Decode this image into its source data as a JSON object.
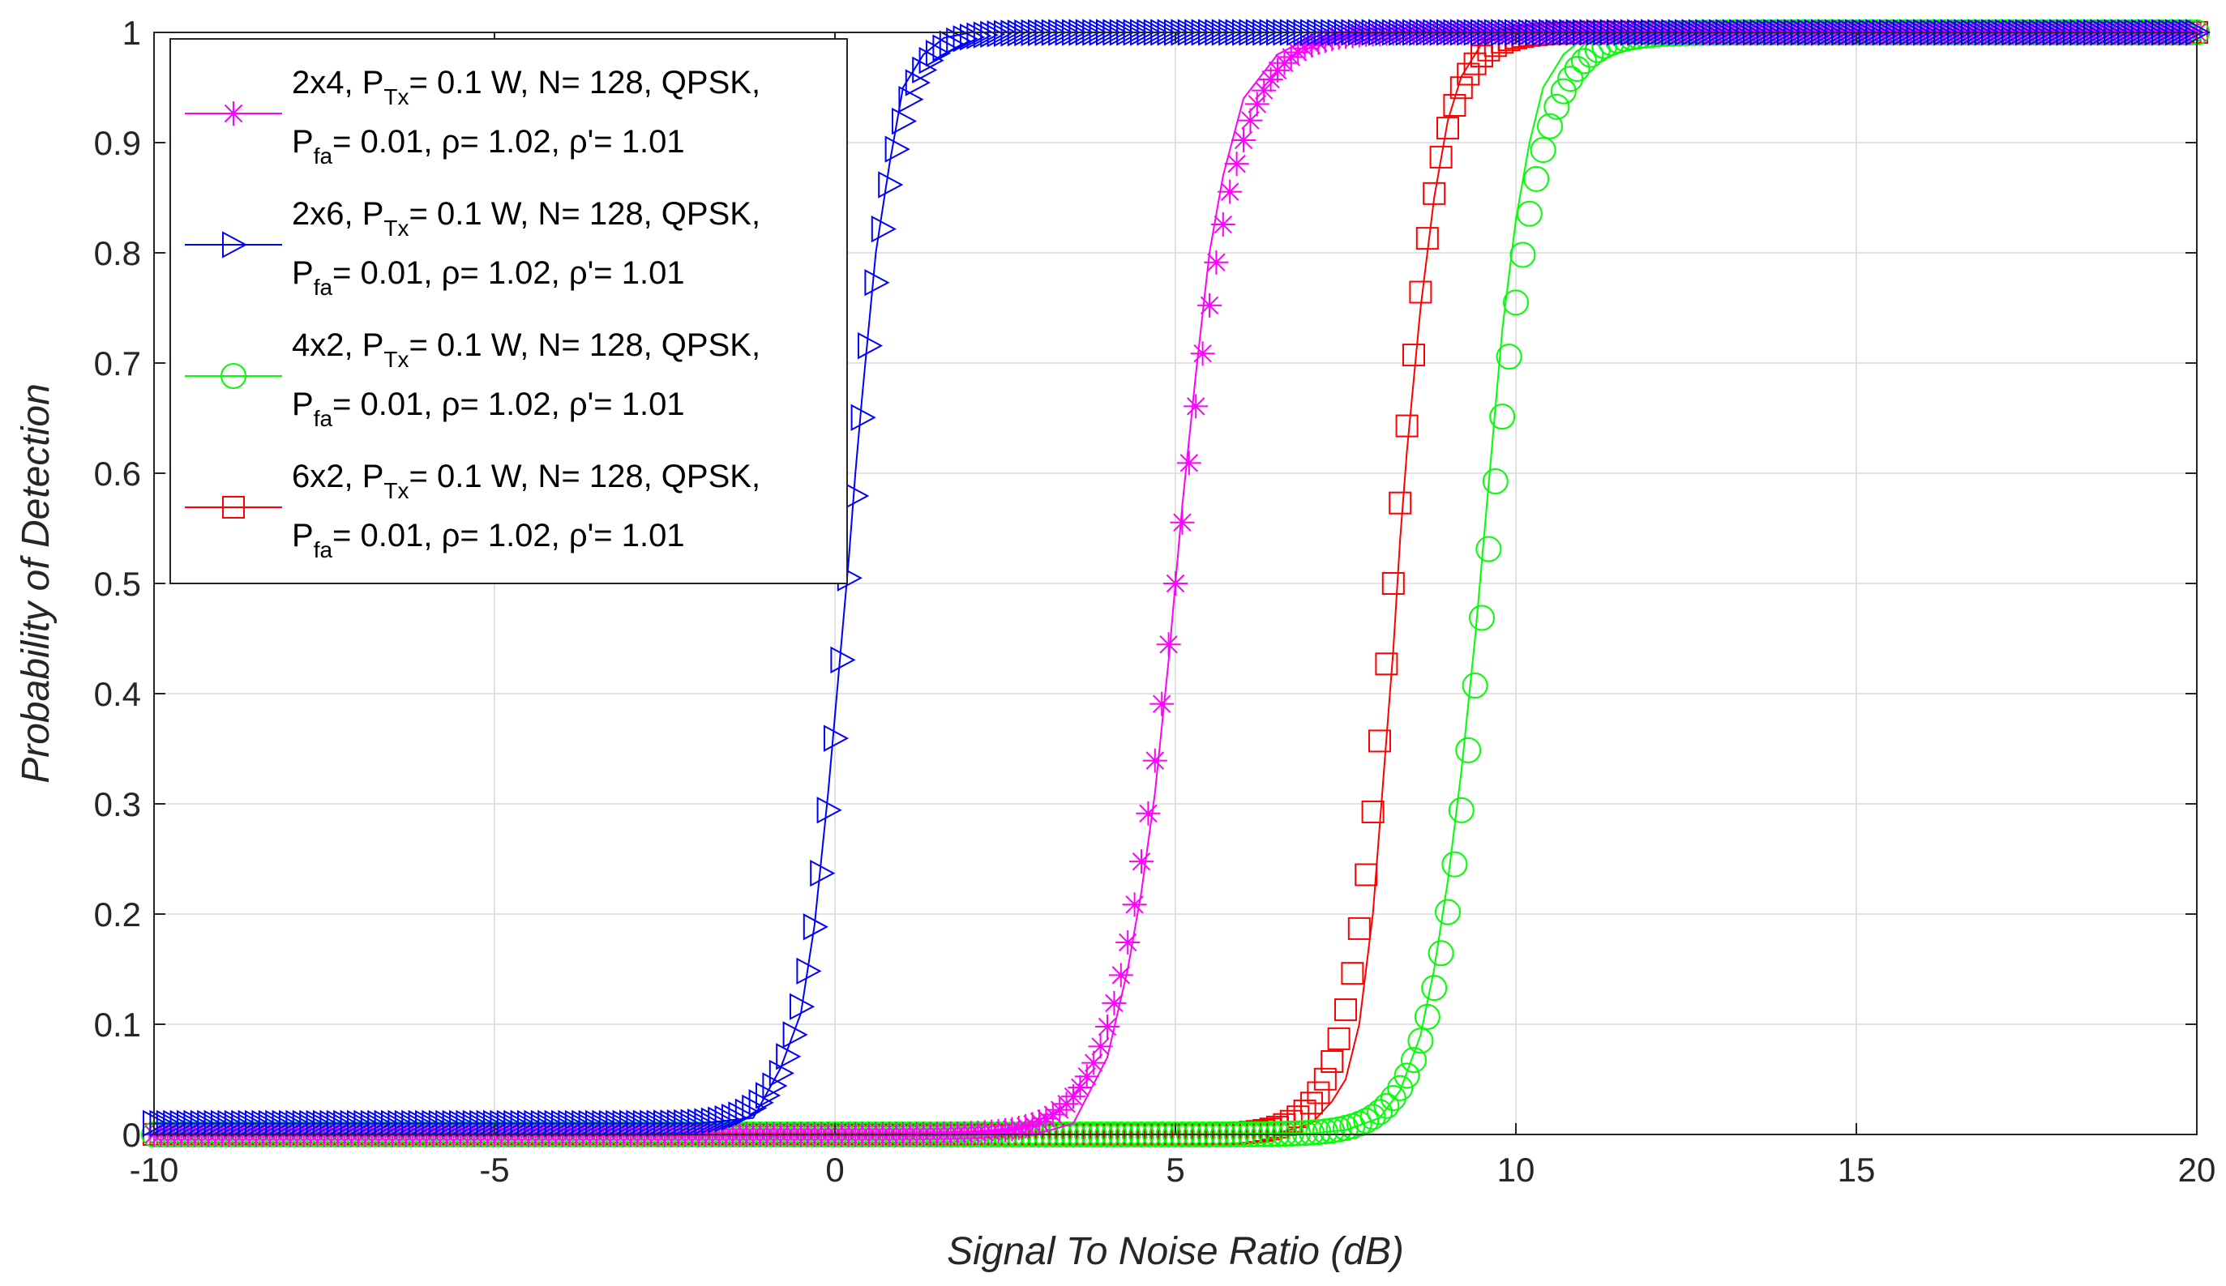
{
  "chart_data": {
    "type": "line",
    "title": "",
    "xlabel": "Signal To Noise Ratio (dB)",
    "ylabel": "Probability of Detection",
    "xlim": [
      -10,
      20
    ],
    "ylim": [
      0,
      1
    ],
    "xticks": [
      -10,
      -5,
      0,
      5,
      10,
      15,
      20
    ],
    "xtick_labels": [
      "-10",
      "-5",
      "0",
      "5",
      "10",
      "15",
      "20"
    ],
    "yticks": [
      0,
      0.1,
      0.2,
      0.3,
      0.4,
      0.5,
      0.6,
      0.7,
      0.8,
      0.9,
      1
    ],
    "ytick_labels": [
      "0",
      "0.1",
      "0.2",
      "0.3",
      "0.4",
      "0.5",
      "0.6",
      "0.7",
      "0.8",
      "0.9",
      "1"
    ],
    "grid": true,
    "legend_position": "top-left",
    "series": [
      {
        "name": "2x4, P_Tx= 0.1 W, N= 128, QPSK, P_fa= 0.01, ρ= 1.02, ρ'= 1.01",
        "legend_line1": {
          "pre": "2x4, P",
          "sub": "Tx",
          "post": "= 0.1 W, N= 128, QPSK,"
        },
        "legend_line2": {
          "pre": "P",
          "sub": "fa",
          "post": "= 0.01, ρ= 1.02, ρ'= 1.01"
        },
        "color": "#ff00ff",
        "marker": "asterisk",
        "center": 5.0,
        "width": 0.45,
        "floor": 0.0,
        "x": [
          -10,
          -9,
          -8,
          -7,
          -6,
          -5,
          -4,
          -3,
          -2,
          -1,
          0,
          1,
          2,
          3,
          3.5,
          4.0,
          4.3,
          4.5,
          4.7,
          4.8,
          4.9,
          5.0,
          5.1,
          5.2,
          5.3,
          5.5,
          5.7,
          6.0,
          6.5,
          7,
          8,
          10,
          12,
          15,
          20
        ],
        "y": [
          0,
          0,
          0,
          0,
          0,
          0,
          0,
          0,
          0,
          0,
          0,
          0,
          0,
          0.001,
          0.01,
          0.07,
          0.15,
          0.22,
          0.31,
          0.37,
          0.43,
          0.5,
          0.57,
          0.63,
          0.69,
          0.8,
          0.87,
          0.94,
          0.98,
          0.996,
          1,
          1,
          1,
          1,
          1
        ]
      },
      {
        "name": "2x6, P_Tx= 0.1 W, N= 128, QPSK, P_fa= 0.01, ρ= 1.02, ρ'= 1.01",
        "legend_line1": {
          "pre": "2x6, P",
          "sub": "Tx",
          "post": "= 0.1 W, N= 128, QPSK,"
        },
        "legend_line2": {
          "pre": "P",
          "sub": "fa",
          "post": "= 0.01, ρ= 1.02, ρ'= 1.01"
        },
        "color": "#0000ff",
        "marker": "triangle-right",
        "center": 0.2,
        "width": 0.33,
        "floor": 0.01,
        "x": [
          -10,
          -9,
          -8,
          -7,
          -6,
          -5,
          -4,
          -3,
          -2,
          -1.2,
          -0.8,
          -0.5,
          -0.3,
          -0.1,
          0.0,
          0.1,
          0.2,
          0.3,
          0.4,
          0.6,
          0.8,
          1.0,
          1.3,
          1.6,
          2.0,
          3,
          5,
          10,
          15,
          20
        ],
        "y": [
          0.01,
          0.01,
          0.01,
          0.01,
          0.01,
          0.01,
          0.01,
          0.01,
          0.01,
          0.015,
          0.06,
          0.11,
          0.19,
          0.31,
          0.38,
          0.45,
          0.52,
          0.6,
          0.67,
          0.8,
          0.88,
          0.95,
          0.98,
          0.995,
          1,
          1,
          1,
          1,
          1,
          1
        ]
      },
      {
        "name": "4x2, P_Tx= 0.1 W, N= 128, QPSK, P_fa= 0.01, ρ= 1.02, ρ'= 1.01",
        "legend_line1": {
          "pre": "4x2, P",
          "sub": "Tx",
          "post": "= 0.1 W, N= 128, QPSK,"
        },
        "legend_line2": {
          "pre": "P",
          "sub": "fa",
          "post": "= 0.01, ρ= 1.02, ρ'= 1.01"
        },
        "color": "#00ff00",
        "marker": "circle",
        "center": 9.55,
        "width": 0.4,
        "floor": 0.0,
        "x": [
          -10,
          -5,
          0,
          5,
          7,
          7.5,
          8.0,
          8.3,
          8.6,
          8.8,
          9.0,
          9.2,
          9.4,
          9.5,
          9.6,
          9.7,
          9.8,
          9.9,
          10.0,
          10.2,
          10.4,
          10.7,
          11,
          12,
          15,
          20
        ],
        "y": [
          0,
          0,
          0,
          0,
          0.001,
          0.004,
          0.015,
          0.04,
          0.09,
          0.15,
          0.23,
          0.33,
          0.45,
          0.52,
          0.59,
          0.66,
          0.73,
          0.78,
          0.83,
          0.9,
          0.95,
          0.98,
          0.995,
          1,
          1,
          1
        ]
      },
      {
        "name": "6x2, P_Tx= 0.1 W, N= 128, QPSK, P_fa= 0.01, ρ= 1.02, ρ'= 1.01",
        "legend_line1": {
          "pre": "6x2, P",
          "sub": "Tx",
          "post": "= 0.1 W, N= 128, QPSK,"
        },
        "legend_line2": {
          "pre": "P",
          "sub": "fa",
          "post": "= 0.01, ρ= 1.02, ρ'= 1.01"
        },
        "color": "#ff0000",
        "marker": "square",
        "center": 8.2,
        "width": 0.34,
        "floor": 0.0,
        "x": [
          -10,
          -5,
          0,
          5,
          6.5,
          7.0,
          7.3,
          7.5,
          7.7,
          7.9,
          8.0,
          8.1,
          8.2,
          8.3,
          8.4,
          8.6,
          8.8,
          9.0,
          9.2,
          9.5,
          10,
          11,
          15,
          20
        ],
        "y": [
          0,
          0,
          0,
          0,
          0.001,
          0.01,
          0.03,
          0.05,
          0.1,
          0.2,
          0.28,
          0.36,
          0.44,
          0.54,
          0.62,
          0.75,
          0.85,
          0.92,
          0.96,
          0.99,
          1,
          1,
          1,
          1
        ]
      }
    ]
  }
}
